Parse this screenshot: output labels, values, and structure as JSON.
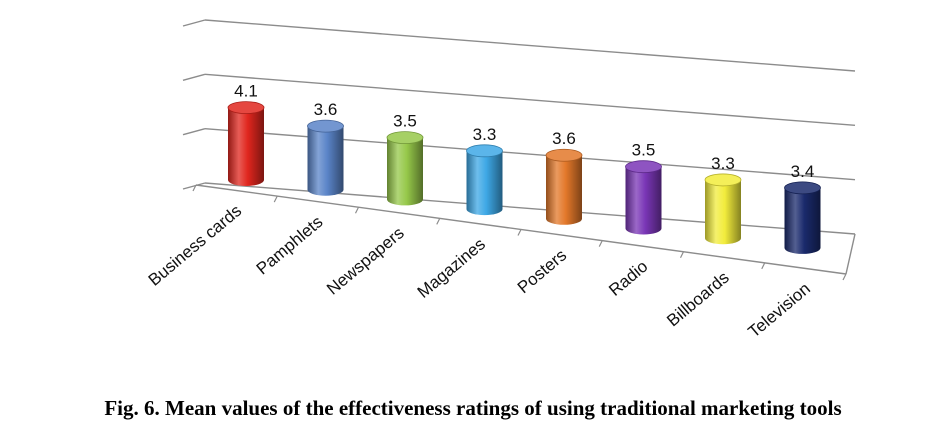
{
  "chart_data": {
    "type": "bar",
    "style": "3d-cylinder",
    "categories": [
      "Business cards",
      "Pamphlets",
      "Newspapers",
      "Magazines",
      "Posters",
      "Radio",
      "Billboards",
      "Television"
    ],
    "values": [
      4.1,
      3.6,
      3.5,
      3.3,
      3.6,
      3.5,
      3.3,
      3.4
    ],
    "data_labels": [
      "4.1",
      "3.6",
      "3.5",
      "3.3",
      "3.6",
      "3.5",
      "3.3",
      "3.4"
    ],
    "colors": [
      "#e0261e",
      "#5a84c8",
      "#96c84a",
      "#3ea8e6",
      "#e3782a",
      "#7a36b6",
      "#f2ec3c",
      "#1a2a6c"
    ],
    "ylim": [
      0,
      6
    ],
    "gridlines": true,
    "legend": "none",
    "title": "",
    "xlabel": "",
    "ylabel": ""
  },
  "caption": "Fig. 6. Mean values of the effectiveness ratings of using traditional marketing tools"
}
